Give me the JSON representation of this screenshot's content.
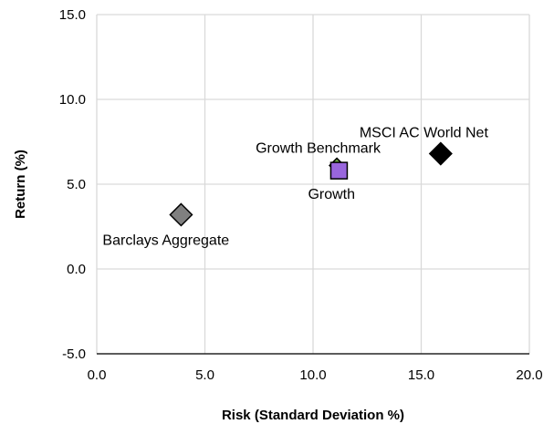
{
  "chart_data": {
    "type": "scatter",
    "xlabel": "Risk (Standard Deviation %)",
    "ylabel": "Return (%)",
    "xlim": [
      0.0,
      20.0
    ],
    "ylim": [
      -5.0,
      15.0
    ],
    "x_ticks": [
      "0.0",
      "5.0",
      "10.0",
      "15.0",
      "20.0"
    ],
    "y_ticks": [
      "-5.0",
      "0.0",
      "5.0",
      "10.0",
      "15.0"
    ],
    "grid": true,
    "legend": "none",
    "points": [
      {
        "label": "Barclays Aggregate",
        "x": 3.9,
        "y": 3.2,
        "marker": "diamond",
        "color": "#808080"
      },
      {
        "label": "Growth Benchmark",
        "x": 11.1,
        "y": 6.1,
        "marker": "diamond",
        "color": "#70ad47"
      },
      {
        "label": "Growth",
        "x": 11.2,
        "y": 5.8,
        "marker": "square",
        "color": "#9966dd"
      },
      {
        "label": "MSCI AC World Net",
        "x": 15.9,
        "y": 6.8,
        "marker": "diamond",
        "color": "#000000"
      }
    ]
  }
}
